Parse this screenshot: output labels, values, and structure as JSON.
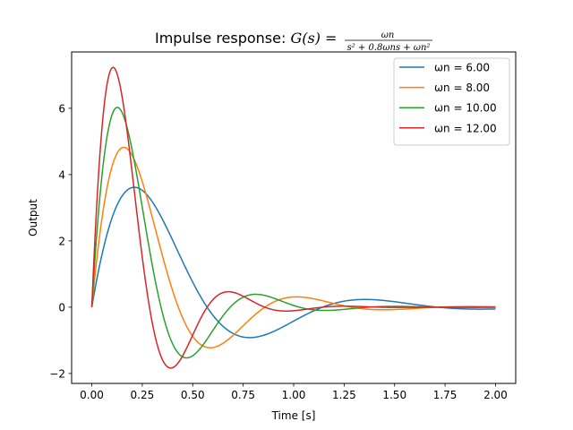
{
  "chart_data": {
    "type": "line",
    "title_prefix": "Impulse response: ",
    "title_formula_lhs": "G(s) = ",
    "title_numerator": "ωn",
    "title_denominator": "s² + 0.8ωns + ωn²",
    "xlabel": "Time [s]",
    "ylabel": "Output",
    "xlim": [
      -0.1,
      2.1
    ],
    "ylim": [
      -2.3,
      7.7
    ],
    "xticks": [
      0.0,
      0.25,
      0.5,
      0.75,
      1.0,
      1.25,
      1.5,
      1.75,
      2.0
    ],
    "xtick_labels": [
      "0.00",
      "0.25",
      "0.50",
      "0.75",
      "1.00",
      "1.25",
      "1.50",
      "1.75",
      "2.00"
    ],
    "yticks": [
      -2,
      0,
      2,
      4,
      6
    ],
    "ytick_labels": [
      "−2",
      "0",
      "2",
      "4",
      "6"
    ],
    "grid": false,
    "legend_position": "top-right",
    "x_range": [
      0,
      2
    ],
    "damping_coefficient": 0.8,
    "series": [
      {
        "name": "ωn = 6.00",
        "wn": 6,
        "color": "#1f77b4"
      },
      {
        "name": "ωn = 8.00",
        "wn": 8,
        "color": "#ff7f0e"
      },
      {
        "name": "ωn = 10.00",
        "wn": 10,
        "color": "#2ca02c"
      },
      {
        "name": "ωn = 12.00",
        "wn": 12,
        "color": "#d62728"
      }
    ]
  }
}
